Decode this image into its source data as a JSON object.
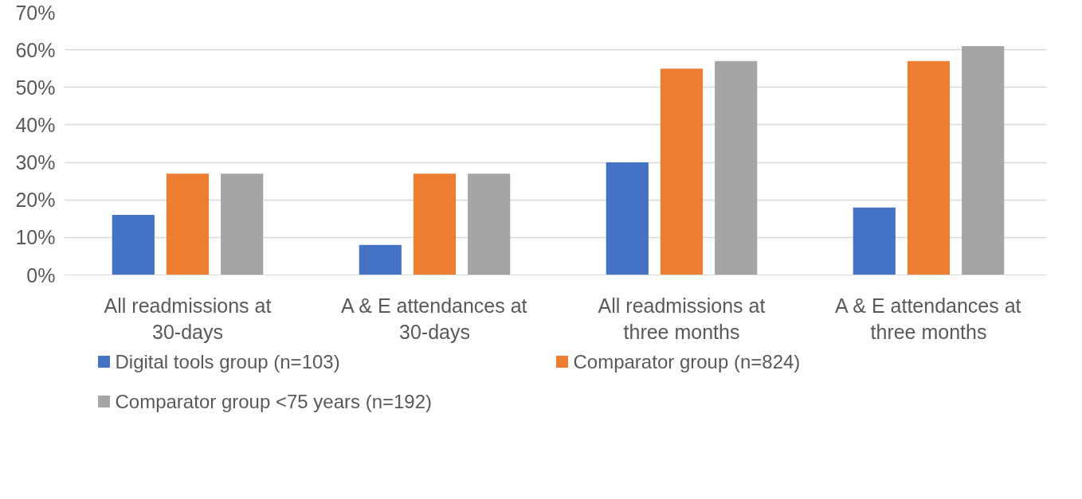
{
  "chart_data": {
    "type": "bar",
    "categories": [
      "All readmissions at 30-days",
      "A & E attendances at 30-days",
      "All readmissions at three months",
      "A & E attendances at three months"
    ],
    "series": [
      {
        "name": "Digital tools group (n=103)",
        "color": "#4472c4",
        "values": [
          16,
          8,
          30,
          18
        ]
      },
      {
        "name": "Comparator group (n=824)",
        "color": "#ed7d31",
        "values": [
          27,
          27,
          55,
          57
        ]
      },
      {
        "name": "Comparator  group <75 years (n=192)",
        "color": "#a5a5a5",
        "values": [
          27,
          27,
          57,
          61
        ]
      }
    ],
    "ylim": [
      0,
      70
    ],
    "yticks": [
      {
        "value": 0,
        "label": "0%"
      },
      {
        "value": 10,
        "label": "10%"
      },
      {
        "value": 20,
        "label": "20%"
      },
      {
        "value": 30,
        "label": "30%"
      },
      {
        "value": 40,
        "label": "40%"
      },
      {
        "value": 50,
        "label": "50%"
      },
      {
        "value": 60,
        "label": "60%"
      },
      {
        "value": 70,
        "label": "70%"
      }
    ],
    "grid": "y",
    "legend": "bottom"
  }
}
